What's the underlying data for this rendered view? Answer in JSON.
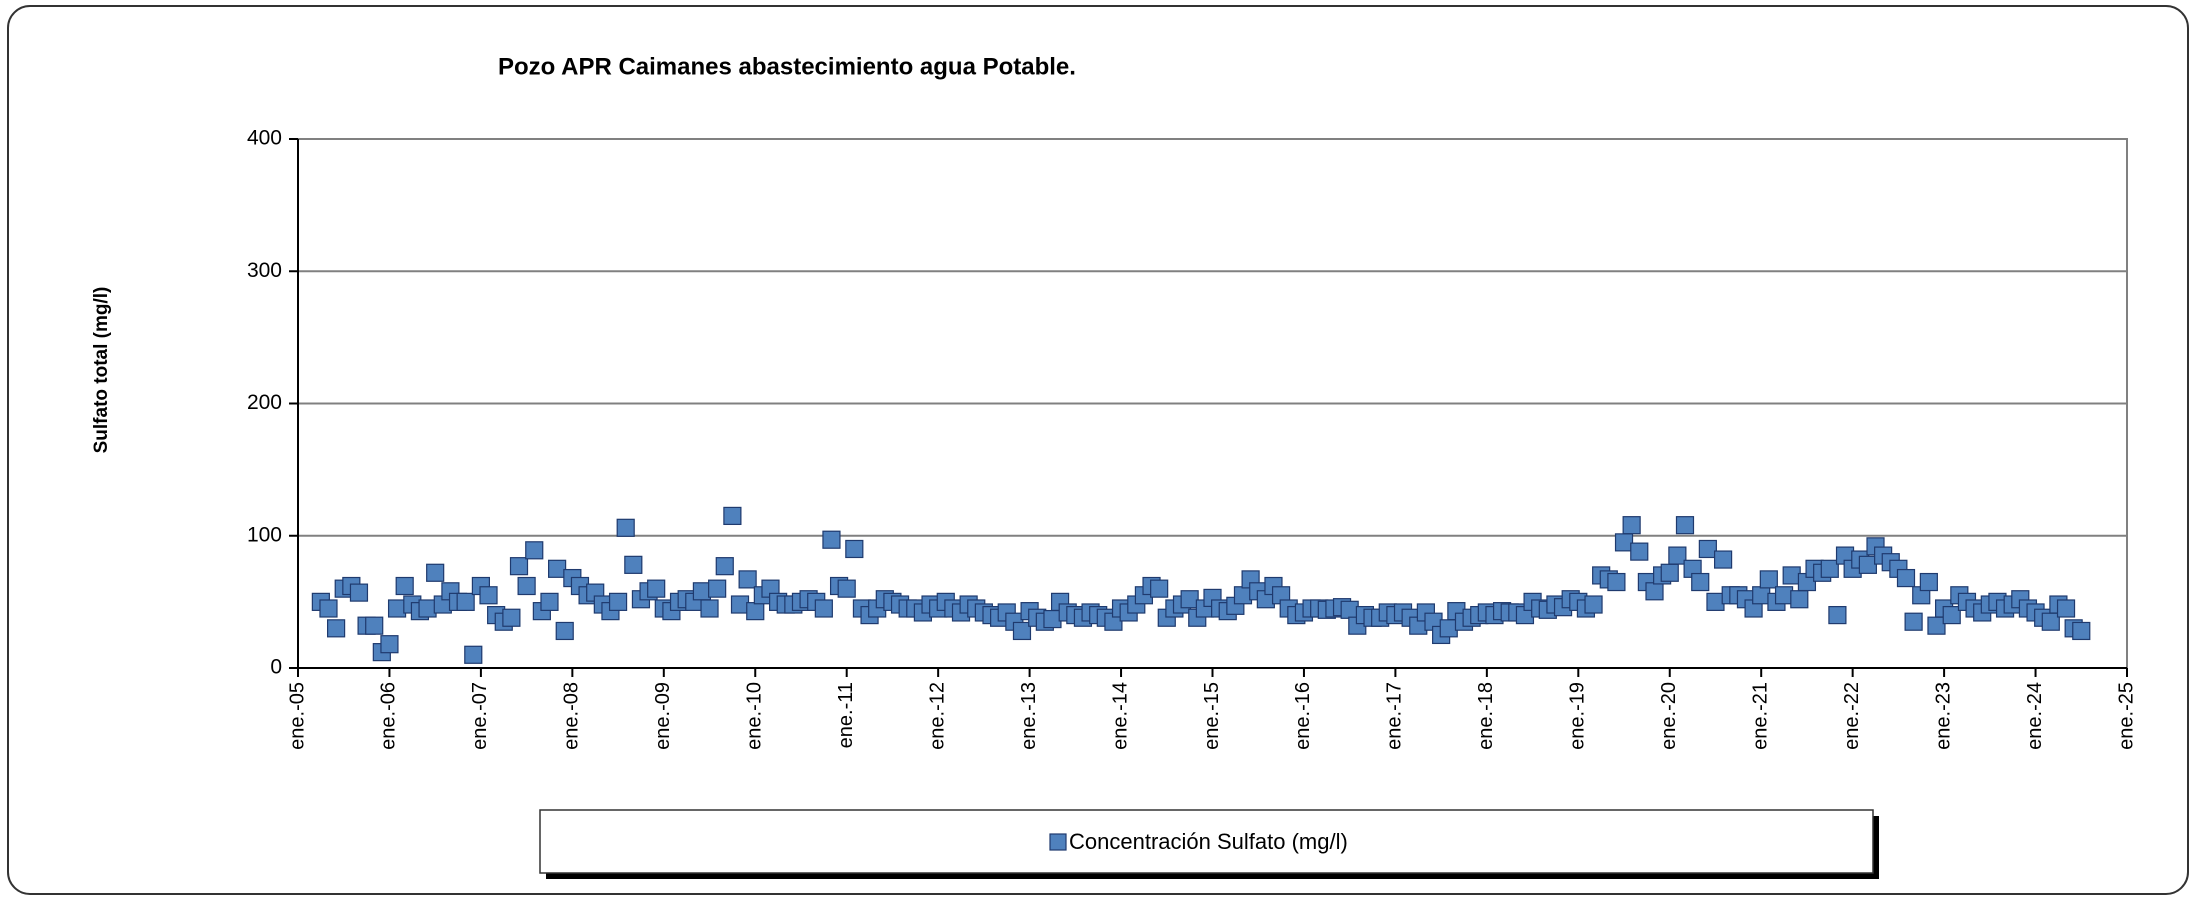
{
  "chart_data": {
    "type": "scatter",
    "title": "Pozo APR Caimanes abastecimiento agua Potable.",
    "y_label": "Sulfato total (mg/l)",
    "legend": "bottom",
    "grid": true,
    "xlim": [
      "2005-01",
      "2025-01"
    ],
    "xticks": [
      {
        "value": "2005-01",
        "label": "ene.-05"
      },
      {
        "value": "2006-01",
        "label": "ene.-06"
      },
      {
        "value": "2007-01",
        "label": "ene.-07"
      },
      {
        "value": "2008-01",
        "label": "ene.-08"
      },
      {
        "value": "2009-01",
        "label": "ene.-09"
      },
      {
        "value": "2010-01",
        "label": "ene.-10"
      },
      {
        "value": "2011-01",
        "label": "ene.-11"
      },
      {
        "value": "2012-01",
        "label": "ene.-12"
      },
      {
        "value": "2013-01",
        "label": "ene.-13"
      },
      {
        "value": "2014-01",
        "label": "ene.-14"
      },
      {
        "value": "2015-01",
        "label": "ene.-15"
      },
      {
        "value": "2016-01",
        "label": "ene.-16"
      },
      {
        "value": "2017-01",
        "label": "ene.-17"
      },
      {
        "value": "2018-01",
        "label": "ene.-18"
      },
      {
        "value": "2019-01",
        "label": "ene.-19"
      },
      {
        "value": "2020-01",
        "label": "ene.-20"
      },
      {
        "value": "2021-01",
        "label": "ene.-21"
      },
      {
        "value": "2022-01",
        "label": "ene.-22"
      },
      {
        "value": "2023-01",
        "label": "ene.-23"
      },
      {
        "value": "2024-01",
        "label": "ene.-24"
      },
      {
        "value": "2025-01",
        "label": "ene.-25"
      }
    ],
    "ylim": [
      0,
      400
    ],
    "yticks": [
      0,
      100,
      200,
      300,
      400
    ],
    "x": [
      "2005-04",
      "2005-05",
      "2005-06",
      "2005-07",
      "2005-08",
      "2005-09",
      "2005-10",
      "2005-11",
      "2005-12",
      "2006-01",
      "2006-02",
      "2006-03",
      "2006-04",
      "2006-05",
      "2006-06",
      "2006-07",
      "2006-08",
      "2006-09",
      "2006-10",
      "2006-11",
      "2006-12",
      "2007-01",
      "2007-02",
      "2007-03",
      "2007-04",
      "2007-05",
      "2007-06",
      "2007-07",
      "2007-08",
      "2007-09",
      "2007-10",
      "2007-11",
      "2007-12",
      "2008-01",
      "2008-02",
      "2008-03",
      "2008-04",
      "2008-05",
      "2008-06",
      "2008-07",
      "2008-08",
      "2008-09",
      "2008-10",
      "2008-11",
      "2008-12",
      "2009-01",
      "2009-02",
      "2009-03",
      "2009-04",
      "2009-05",
      "2009-06",
      "2009-07",
      "2009-08",
      "2009-09",
      "2009-10",
      "2009-11",
      "2009-12",
      "2010-01",
      "2010-02",
      "2010-03",
      "2010-04",
      "2010-05",
      "2010-06",
      "2010-07",
      "2010-08",
      "2010-09",
      "2010-10",
      "2010-11",
      "2010-12",
      "2011-01",
      "2011-02",
      "2011-03",
      "2011-04",
      "2011-05",
      "2011-06",
      "2011-07",
      "2011-08",
      "2011-09",
      "2011-10",
      "2011-11",
      "2011-12",
      "2012-01",
      "2012-02",
      "2012-03",
      "2012-04",
      "2012-05",
      "2012-06",
      "2012-07",
      "2012-08",
      "2012-09",
      "2012-10",
      "2012-11",
      "2012-12",
      "2013-01",
      "2013-02",
      "2013-03",
      "2013-04",
      "2013-05",
      "2013-06",
      "2013-07",
      "2013-08",
      "2013-09",
      "2013-10",
      "2013-11",
      "2013-12",
      "2014-01",
      "2014-02",
      "2014-03",
      "2014-04",
      "2014-05",
      "2014-06",
      "2014-07",
      "2014-08",
      "2014-09",
      "2014-10",
      "2014-11",
      "2014-12",
      "2015-01",
      "2015-02",
      "2015-03",
      "2015-04",
      "2015-05",
      "2015-06",
      "2015-07",
      "2015-08",
      "2015-09",
      "2015-10",
      "2015-11",
      "2015-12",
      "2016-01",
      "2016-02",
      "2016-03",
      "2016-04",
      "2016-05",
      "2016-06",
      "2016-07",
      "2016-08",
      "2016-09",
      "2016-10",
      "2016-11",
      "2016-12",
      "2017-01",
      "2017-02",
      "2017-03",
      "2017-04",
      "2017-05",
      "2017-06",
      "2017-07",
      "2017-08",
      "2017-09",
      "2017-10",
      "2017-11",
      "2017-12",
      "2018-01",
      "2018-02",
      "2018-03",
      "2018-04",
      "2018-05",
      "2018-06",
      "2018-07",
      "2018-08",
      "2018-09",
      "2018-10",
      "2018-11",
      "2018-12",
      "2019-01",
      "2019-02",
      "2019-03",
      "2019-04",
      "2019-05",
      "2019-06",
      "2019-07",
      "2019-08",
      "2019-09",
      "2019-10",
      "2019-11",
      "2019-12",
      "2020-01",
      "2020-02",
      "2020-03",
      "2020-04",
      "2020-05",
      "2020-06",
      "2020-07",
      "2020-08",
      "2020-09",
      "2020-10",
      "2020-11",
      "2020-12",
      "2021-01",
      "2021-02",
      "2021-03",
      "2021-04",
      "2021-05",
      "2021-06",
      "2021-07",
      "2021-08",
      "2021-09",
      "2021-10",
      "2021-11",
      "2021-12",
      "2022-01",
      "2022-02",
      "2022-03",
      "2022-04",
      "2022-05",
      "2022-06",
      "2022-07",
      "2022-08",
      "2022-09",
      "2022-10",
      "2022-11",
      "2022-12",
      "2023-01",
      "2023-02",
      "2023-03",
      "2023-04",
      "2023-05",
      "2023-06",
      "2023-07",
      "2023-08",
      "2023-09",
      "2023-10",
      "2023-11",
      "2023-12",
      "2024-01",
      "2024-02",
      "2024-03",
      "2024-04",
      "2024-05",
      "2024-06",
      "2024-07"
    ],
    "series": [
      {
        "name": "Concentración Sulfato (mg/l)",
        "color": "#4f81bd",
        "values": [
          50,
          45,
          30,
          60,
          62,
          57,
          32,
          32,
          12,
          18,
          45,
          62,
          48,
          43,
          45,
          72,
          48,
          58,
          50,
          50,
          10,
          62,
          55,
          40,
          35,
          38,
          77,
          62,
          89,
          43,
          50,
          75,
          28,
          68,
          62,
          55,
          57,
          48,
          43,
          50,
          106,
          78,
          52,
          58,
          60,
          45,
          43,
          50,
          52,
          50,
          58,
          45,
          60,
          77,
          115,
          48,
          67,
          43,
          55,
          60,
          50,
          48,
          48,
          50,
          52,
          50,
          45,
          97,
          62,
          60,
          90,
          45,
          40,
          45,
          52,
          50,
          48,
          45,
          45,
          42,
          48,
          45,
          50,
          45,
          42,
          48,
          45,
          42,
          40,
          38,
          42,
          35,
          28,
          43,
          38,
          35,
          37,
          50,
          42,
          40,
          38,
          42,
          40,
          38,
          35,
          45,
          42,
          48,
          55,
          62,
          60,
          38,
          45,
          48,
          52,
          38,
          45,
          53,
          45,
          43,
          47,
          55,
          67,
          58,
          52,
          62,
          55,
          45,
          40,
          42,
          45,
          45,
          44,
          45,
          46,
          44,
          32,
          40,
          38,
          38,
          42,
          40,
          42,
          38,
          32,
          42,
          35,
          25,
          30,
          43,
          35,
          38,
          40,
          42,
          40,
          43,
          42,
          42,
          40,
          50,
          45,
          44,
          48,
          46,
          52,
          50,
          45,
          48,
          70,
          67,
          65,
          95,
          108,
          88,
          65,
          58,
          70,
          72,
          85,
          108,
          75,
          65,
          90,
          50,
          82,
          55,
          55,
          52,
          45,
          55,
          67,
          50,
          55,
          70,
          52,
          65,
          75,
          72,
          75,
          40,
          85,
          75,
          82,
          78,
          92,
          85,
          80,
          75,
          68,
          35,
          55,
          65,
          32,
          45,
          40,
          55,
          50,
          45,
          42,
          48,
          50,
          45,
          48,
          52,
          45,
          42,
          38,
          35,
          48,
          45,
          30,
          28
        ]
      }
    ]
  }
}
